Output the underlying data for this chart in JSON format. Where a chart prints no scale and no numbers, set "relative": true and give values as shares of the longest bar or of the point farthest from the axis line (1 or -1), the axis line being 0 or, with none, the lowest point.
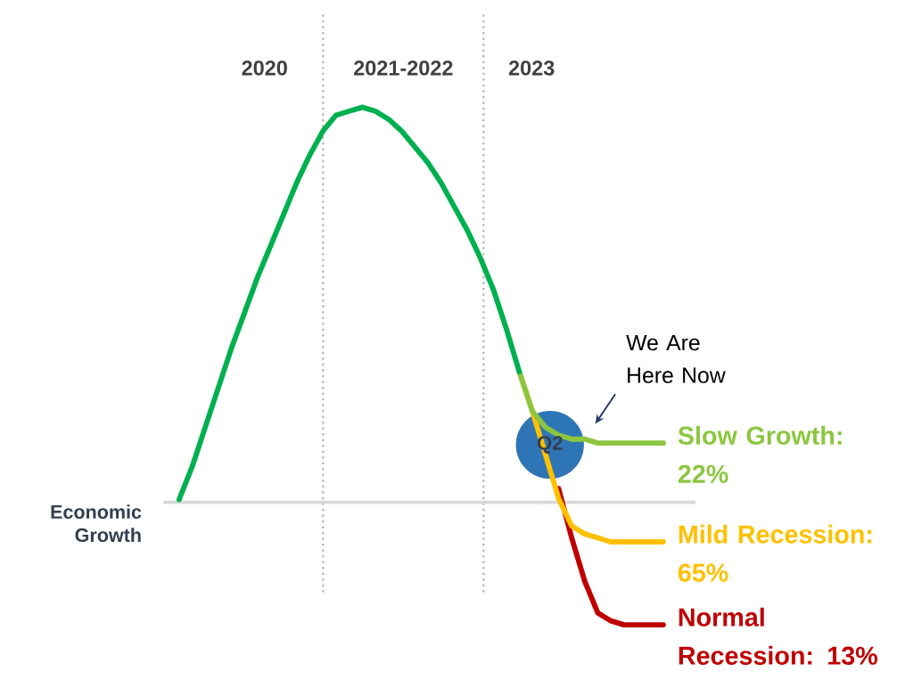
{
  "chart_data": {
    "type": "line",
    "relative": true,
    "categories": [
      null,
      null,
      null,
      null,
      null,
      null,
      null,
      null,
      null,
      null,
      null,
      null,
      null,
      null,
      null,
      null,
      null,
      null,
      null,
      null,
      null,
      null,
      null,
      null,
      null,
      null,
      null,
      null,
      null,
      null,
      null,
      null,
      null,
      null,
      null,
      null,
      null,
      null
    ],
    "series": [
      {
        "color": "#00b04f",
        "values": [
          0.007,
          0.09,
          0.19,
          0.29,
          0.39,
          0.48,
          0.57,
          0.65,
          0.73,
          0.81,
          0.88,
          0.94,
          0.98,
          0.99,
          1.0,
          0.99,
          0.97,
          0.94,
          0.9,
          0.86,
          0.81,
          0.75,
          0.69,
          0.62,
          0.54,
          0.44,
          0.33,
          null,
          null,
          null,
          null,
          null,
          null,
          null,
          null,
          null,
          null,
          null
        ]
      },
      {
        "name": "Slow Growth:  22%",
        "color": "#8cc63f",
        "values": [
          null,
          null,
          null,
          null,
          null,
          null,
          null,
          null,
          null,
          null,
          null,
          null,
          null,
          null,
          null,
          null,
          null,
          null,
          null,
          null,
          null,
          null,
          null,
          null,
          null,
          null,
          0.33,
          0.23,
          0.19,
          0.17,
          0.16,
          0.16,
          0.15,
          0.15,
          0.15,
          0.15,
          0.15,
          0.15
        ]
      },
      {
        "name": "Mild Recession: 65%",
        "color": "#ffc000",
        "values": [
          null,
          null,
          null,
          null,
          null,
          null,
          null,
          null,
          null,
          null,
          null,
          null,
          null,
          null,
          null,
          null,
          null,
          null,
          null,
          null,
          null,
          null,
          null,
          null,
          null,
          null,
          0.33,
          0.23,
          0.12,
          0.01,
          -0.06,
          -0.08,
          -0.09,
          -0.1,
          -0.1,
          -0.1,
          -0.1,
          -0.1
        ]
      },
      {
        "name": "Normal Recession: 13%",
        "color": "#c00000",
        "values": [
          null,
          null,
          null,
          null,
          null,
          null,
          null,
          null,
          null,
          null,
          null,
          null,
          null,
          null,
          null,
          null,
          null,
          null,
          null,
          null,
          null,
          null,
          null,
          null,
          null,
          null,
          null,
          null,
          null,
          0.035,
          -0.09,
          -0.2,
          -0.28,
          -0.3,
          -0.31,
          -0.31,
          -0.31,
          -0.31
        ]
      }
    ],
    "ref_lines": [
      {
        "axis": "y",
        "value": 0,
        "label": "Economic Growth",
        "color": "#d9d9d9"
      }
    ],
    "annotations": [
      "2020",
      "2021-2022",
      "2023",
      "Q2",
      "We Are Here Now"
    ]
  }
}
